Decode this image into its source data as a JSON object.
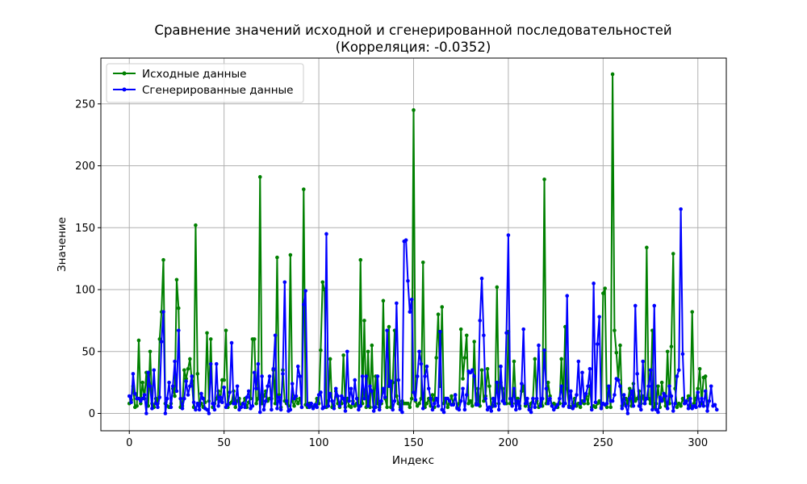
{
  "chart_data": {
    "type": "line",
    "title": "Сравнение значений исходной и сгенерированной последовательностей",
    "subtitle": "(Корреляция: -0.0352)",
    "xlabel": "Индекс",
    "ylabel": "Значение",
    "xlim": [
      -15,
      315
    ],
    "ylim": [
      -14,
      287
    ],
    "xticks": [
      0,
      50,
      100,
      150,
      200,
      250,
      300
    ],
    "yticks": [
      0,
      50,
      100,
      150,
      200,
      250
    ],
    "grid": true,
    "legend_position": "top-left",
    "series": [
      {
        "name": "Исходные данные",
        "color": "#008000",
        "values": [
          8,
          11,
          22,
          5,
          6,
          59,
          8,
          25,
          12,
          33,
          6,
          50,
          8,
          5,
          12,
          8,
          60,
          82,
          124,
          8,
          6,
          5,
          8,
          20,
          14,
          108,
          85,
          5,
          6,
          35,
          28,
          36,
          44,
          26,
          5,
          152,
          32,
          6,
          8,
          5,
          9,
          65,
          10,
          60,
          5,
          8,
          12,
          18,
          10,
          27,
          27,
          67,
          5,
          8,
          9,
          18,
          5,
          10,
          12,
          5,
          8,
          12,
          5,
          9,
          12,
          60,
          60,
          8,
          12,
          191,
          8,
          14,
          18,
          10,
          12,
          12,
          35,
          8,
          126,
          15,
          5,
          35,
          10,
          8,
          6,
          128,
          10,
          6,
          12,
          8,
          12,
          5,
          181,
          7,
          5,
          8,
          6,
          5,
          6,
          12,
          8,
          51,
          106,
          100,
          5,
          10,
          44,
          5,
          6,
          18,
          8,
          5,
          8,
          47,
          5,
          12,
          6,
          5,
          10,
          6,
          8,
          6,
          124,
          8,
          75,
          5,
          50,
          5,
          55,
          5,
          30,
          8,
          5,
          8,
          91,
          12,
          5,
          70,
          5,
          25,
          67,
          14,
          8,
          5,
          10,
          8,
          8,
          8,
          5,
          12,
          245,
          10,
          6,
          8,
          12,
          122,
          5,
          8,
          12,
          6,
          15,
          5,
          45,
          80,
          22,
          86,
          8,
          12,
          5,
          8,
          14,
          8,
          15,
          5,
          8,
          68,
          28,
          45,
          63,
          8,
          10,
          6,
          58,
          8,
          20,
          6,
          35,
          10,
          14,
          36,
          22,
          5,
          6,
          8,
          102,
          8,
          25,
          20,
          8,
          8,
          66,
          8,
          8,
          42,
          8,
          12,
          6,
          18,
          22,
          6,
          8,
          5,
          8,
          12,
          44,
          10,
          5,
          8,
          6,
          189,
          8,
          25,
          14,
          6,
          8,
          7,
          5,
          8,
          44,
          8,
          70,
          20,
          6,
          5,
          8,
          12,
          6,
          8,
          5,
          10,
          8,
          14,
          8,
          22,
          5,
          6,
          5,
          8,
          10,
          5,
          97,
          101,
          5,
          20,
          5,
          274,
          67,
          49,
          27,
          55,
          6,
          8,
          12,
          8,
          20,
          6,
          24,
          10,
          12,
          18,
          8,
          14,
          8,
          134,
          12,
          8,
          67,
          5,
          8,
          22,
          5,
          25,
          12,
          6,
          50,
          8,
          54,
          129,
          20,
          5,
          8,
          6,
          12,
          8,
          10,
          14,
          5,
          82,
          8,
          12,
          20,
          36,
          8,
          29,
          30,
          6
        ]
      },
      {
        "name": "Сгенерированные данные",
        "color": "#0000ff",
        "values": [
          14,
          9,
          32,
          16,
          12,
          12,
          10,
          12,
          15,
          0,
          33,
          22,
          4,
          35,
          8,
          5,
          13,
          58,
          82,
          0,
          12,
          25,
          5,
          22,
          42,
          18,
          67,
          12,
          4,
          12,
          26,
          15,
          22,
          30,
          9,
          3,
          8,
          3,
          16,
          12,
          4,
          3,
          0,
          40,
          8,
          3,
          40,
          6,
          13,
          9,
          21,
          5,
          7,
          17,
          57,
          8,
          8,
          22,
          3,
          5,
          8,
          5,
          13,
          18,
          4,
          6,
          33,
          20,
          40,
          1,
          30,
          3,
          10,
          22,
          30,
          3,
          36,
          63,
          4,
          13,
          3,
          32,
          106,
          10,
          2,
          3,
          24,
          12,
          14,
          38,
          30,
          5,
          88,
          99,
          7,
          5,
          8,
          4,
          7,
          5,
          15,
          17,
          4,
          5,
          145,
          6,
          16,
          10,
          4,
          20,
          14,
          6,
          14,
          12,
          2,
          50,
          10,
          20,
          8,
          27,
          12,
          3,
          6,
          30,
          12,
          30,
          6,
          22,
          18,
          2,
          5,
          30,
          3,
          10,
          20,
          13,
          67,
          22,
          26,
          3,
          10,
          89,
          27,
          3,
          1,
          139,
          140,
          107,
          82,
          92,
          17,
          11,
          30,
          50,
          40,
          4,
          30,
          38,
          20,
          12,
          3,
          8,
          12,
          6,
          66,
          3,
          1,
          12,
          12,
          10,
          7,
          7,
          15,
          4,
          3,
          10,
          20,
          3,
          15,
          34,
          33,
          35,
          30,
          7,
          7,
          75,
          109,
          63,
          12,
          3,
          5,
          2,
          12,
          6,
          25,
          3,
          38,
          10,
          8,
          65,
          144,
          12,
          6,
          20,
          3,
          10,
          4,
          24,
          68,
          8,
          12,
          3,
          1,
          12,
          5,
          12,
          55,
          6,
          12,
          51,
          20,
          8,
          12,
          6,
          3,
          5,
          7,
          12,
          22,
          6,
          8,
          95,
          5,
          18,
          4,
          6,
          15,
          42,
          8,
          33,
          10,
          16,
          22,
          36,
          3,
          105,
          9,
          56,
          78,
          4,
          8,
          7,
          8,
          22,
          10,
          10,
          15,
          28,
          27,
          22,
          4,
          15,
          6,
          0,
          12,
          18,
          6,
          87,
          32,
          6,
          3,
          42,
          8,
          12,
          22,
          35,
          3,
          87,
          3,
          1,
          13,
          10,
          16,
          14,
          4,
          22,
          14,
          2,
          8,
          30,
          35,
          165,
          48,
          8,
          10,
          4,
          12,
          4,
          6,
          5,
          17,
          6,
          12,
          6,
          18,
          2,
          10,
          22,
          6,
          7,
          3
        ]
      }
    ]
  }
}
